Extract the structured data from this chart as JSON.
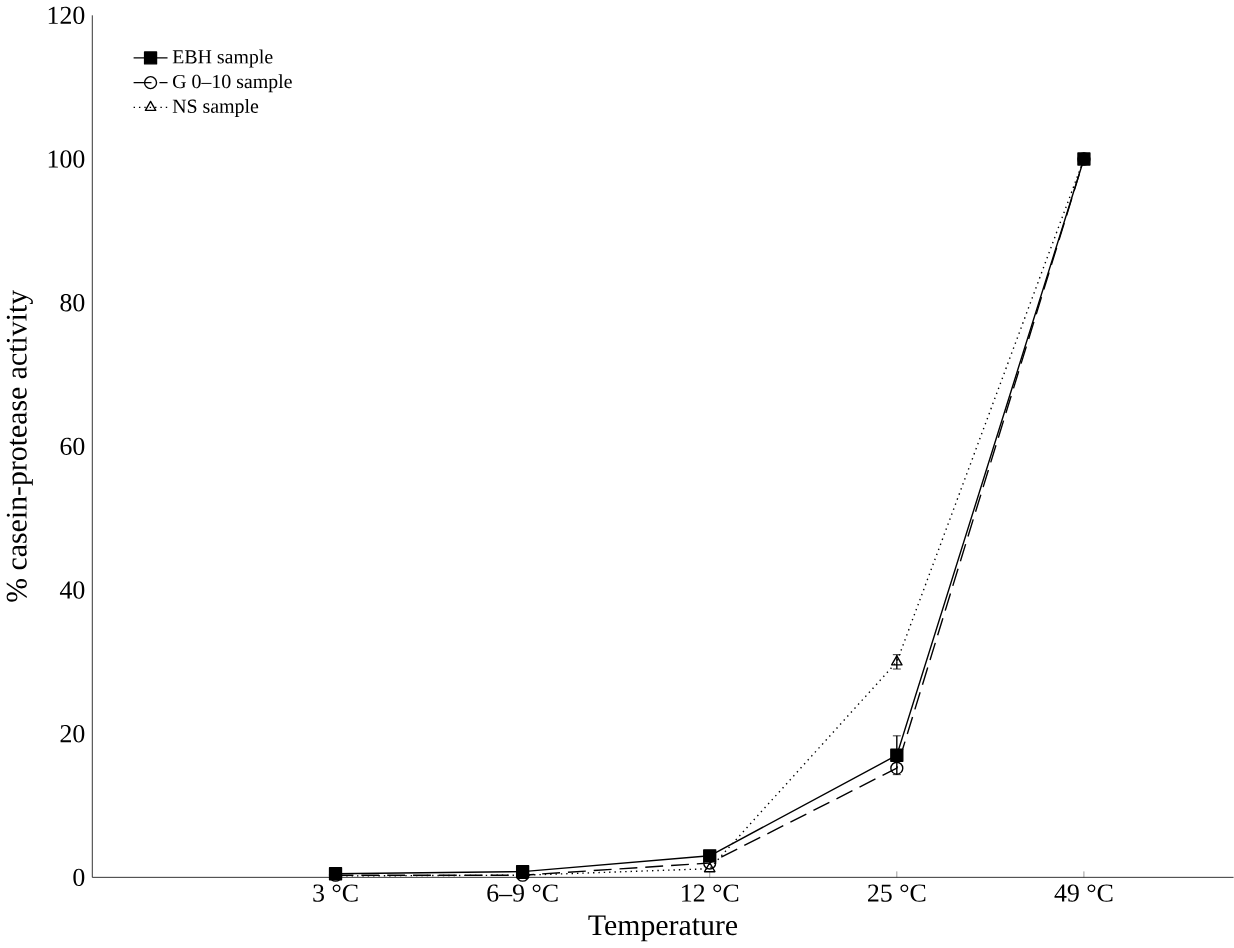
{
  "chart_data": {
    "type": "line",
    "xlabel": "Temperature",
    "ylabel": "% casein-protease activity",
    "categories": [
      "3 °C",
      "6–9 °C",
      "12 °C",
      "25 °C",
      "49 °C"
    ],
    "series": [
      {
        "name": "EBH sample",
        "color": "#000000",
        "marker": "square",
        "line_style": "solid",
        "values": [
          0.5,
          0.8,
          3,
          17,
          100
        ],
        "errors": [
          null,
          null,
          null,
          2.7,
          null
        ]
      },
      {
        "name": "G 0–10 sample",
        "color": "#000000",
        "marker": "circle",
        "line_style": "dashed",
        "values": [
          0.3,
          0.3,
          2,
          15.2,
          100
        ]
      },
      {
        "name": "NS sample",
        "color": "#000000",
        "marker": "triangle",
        "line_style": "dotted",
        "values": [
          0.2,
          0.3,
          1.2,
          30,
          100
        ],
        "errors": [
          null,
          null,
          null,
          1,
          null
        ]
      }
    ],
    "ylim": [
      0,
      120
    ],
    "yticks": [
      0,
      20,
      40,
      60,
      80,
      100,
      120
    ],
    "grid": false,
    "legend": "top left"
  }
}
